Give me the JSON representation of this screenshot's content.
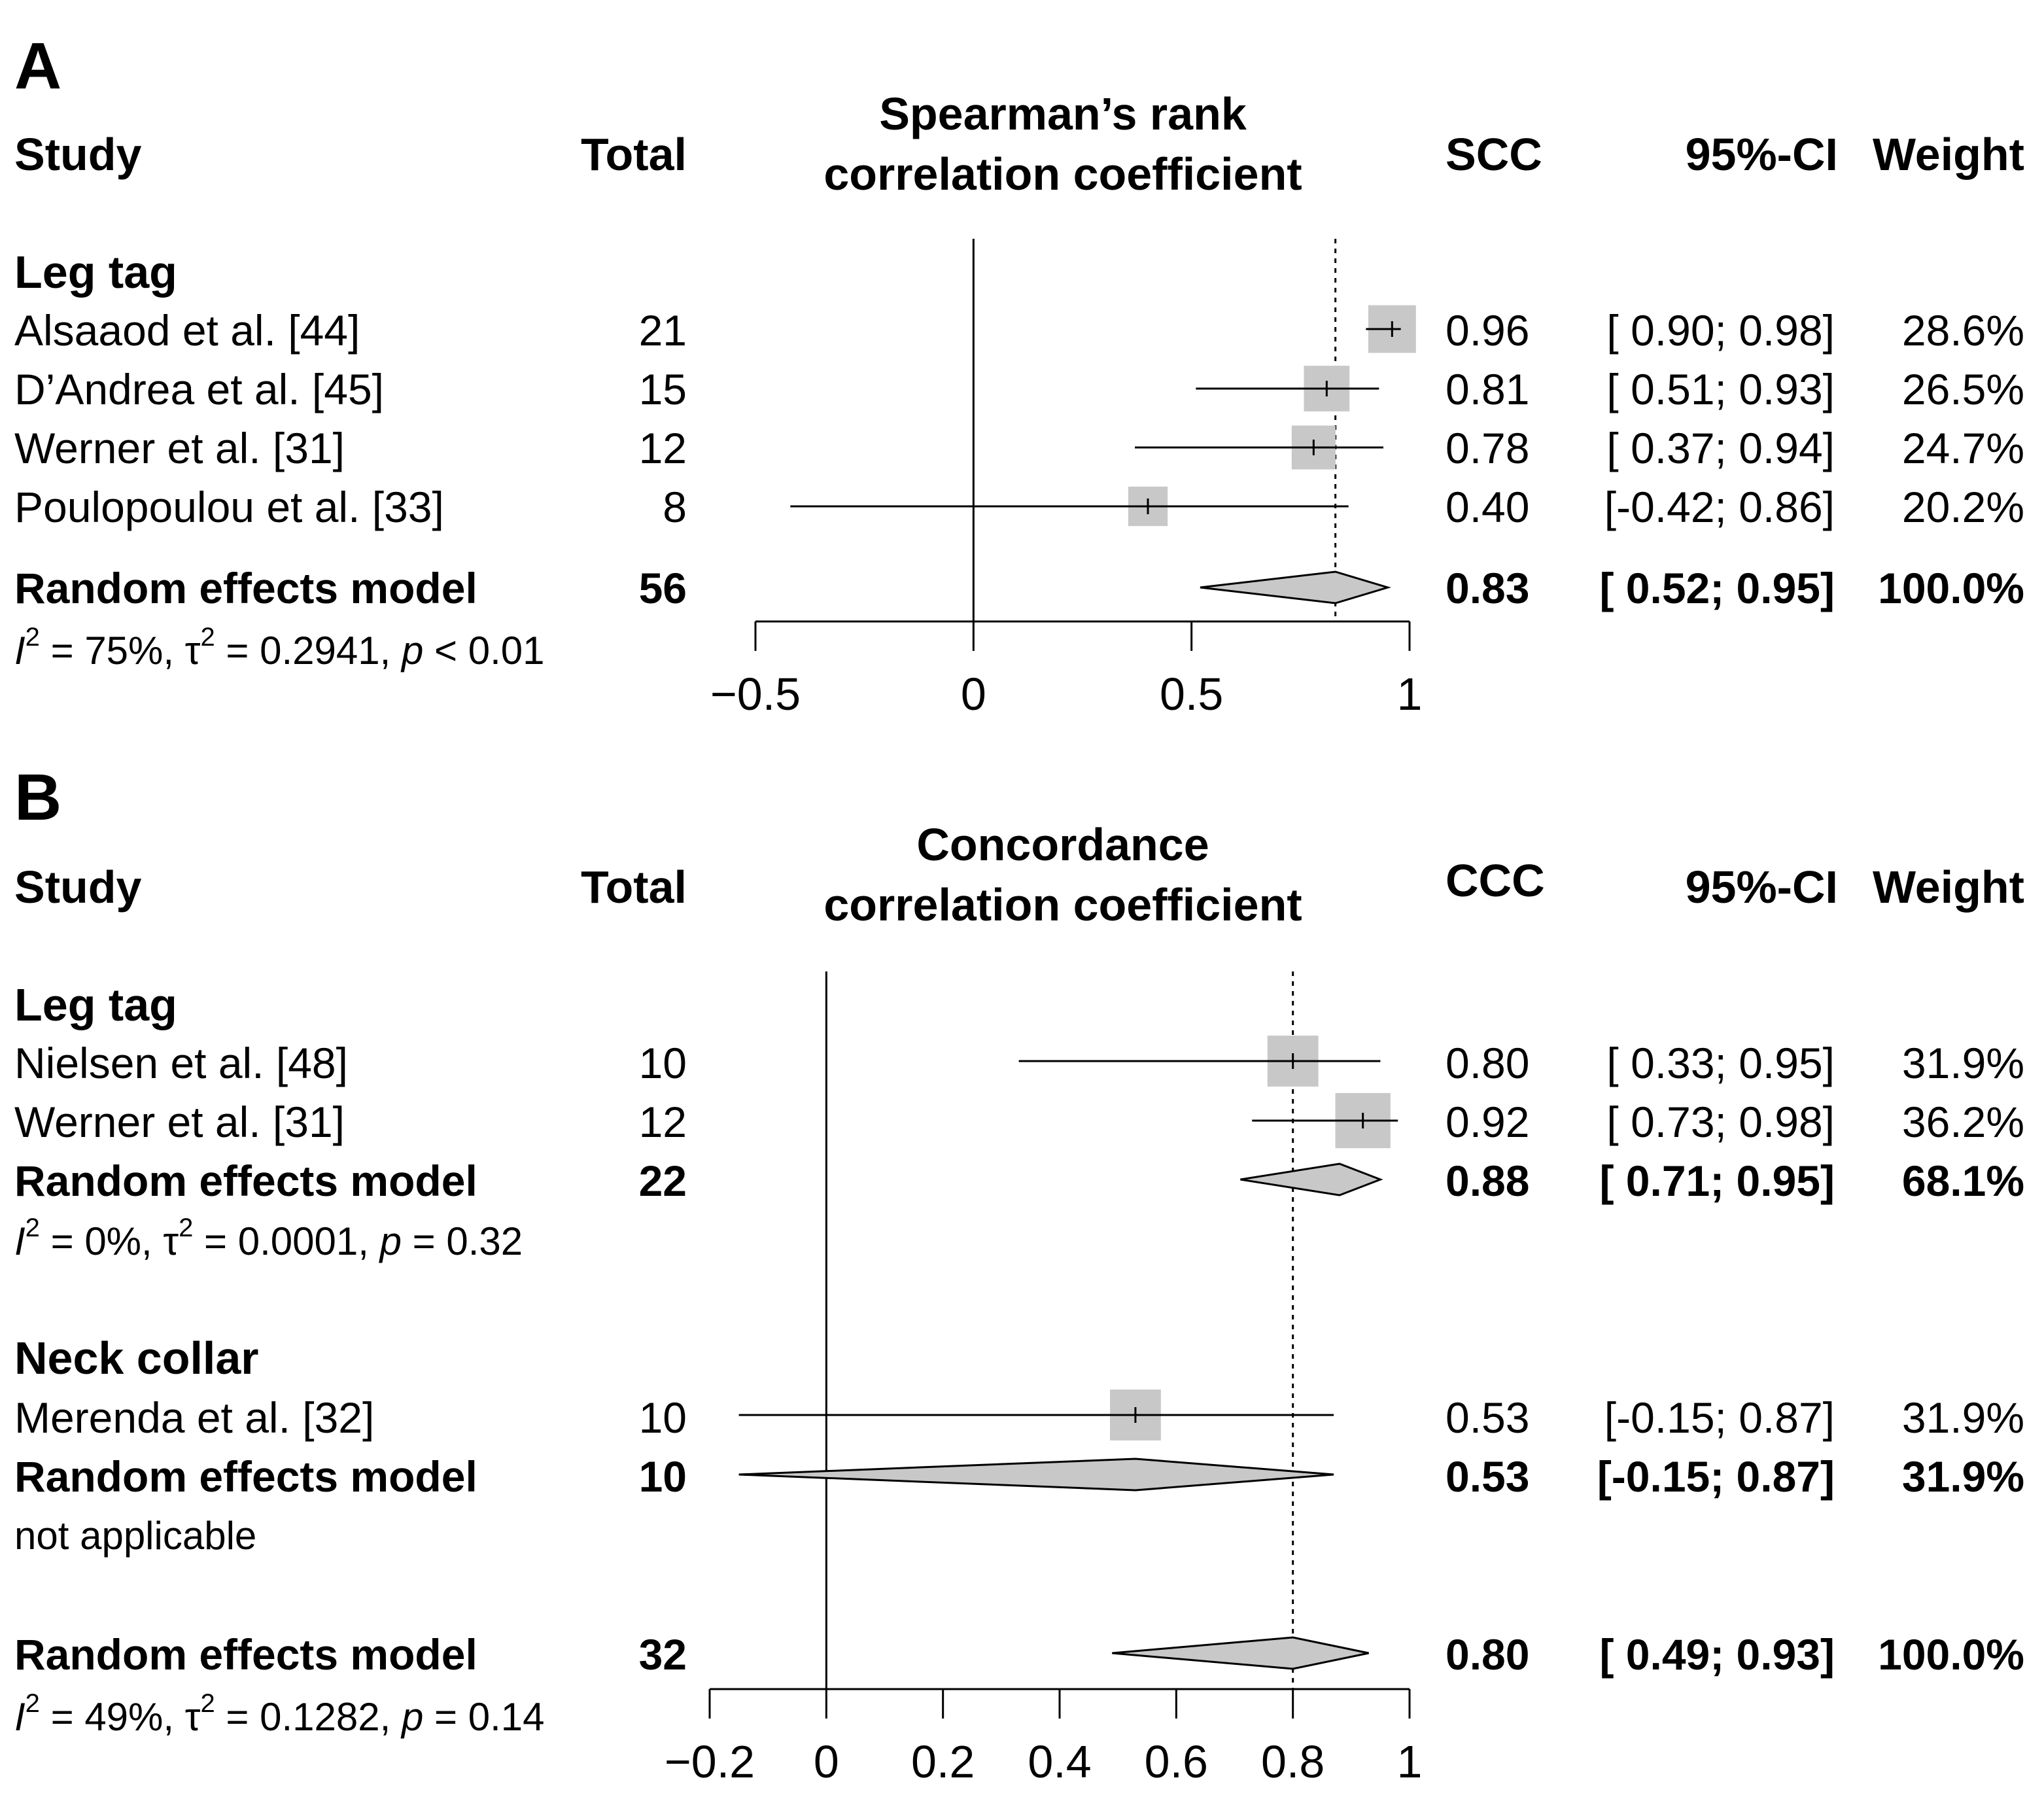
{
  "chart_data": [
    {
      "type": "forest",
      "panel_label": "A",
      "headers": {
        "study": "Study",
        "total": "Total",
        "plot_title_line1": "Spearman’s rank",
        "plot_title_line2": "correlation coefficient",
        "effect": "SCC",
        "ci": "95%-CI",
        "weight": "Weight"
      },
      "xlim": [
        -0.5,
        1
      ],
      "ticks": [
        "−0.5",
        "0",
        "0.5",
        "1"
      ],
      "tick_values": [
        -0.5,
        0,
        0.5,
        1
      ],
      "pooled_reference": 0.83,
      "groups": [
        {
          "name": "Leg tag",
          "studies": [
            {
              "study": "Alsaaod et al. [44]",
              "total": "21",
              "est": 0.96,
              "lo": 0.9,
              "hi": 0.98,
              "est_text": "0.96",
              "ci_text": "[ 0.90; 0.98]",
              "weight": "28.6%"
            },
            {
              "study": "D’Andrea et al. [45]",
              "total": "15",
              "est": 0.81,
              "lo": 0.51,
              "hi": 0.93,
              "est_text": "0.81",
              "ci_text": "[ 0.51; 0.93]",
              "weight": "26.5%"
            },
            {
              "study": "Werner et al. [31]",
              "total": "12",
              "est": 0.78,
              "lo": 0.37,
              "hi": 0.94,
              "est_text": "0.78",
              "ci_text": "[ 0.37; 0.94]",
              "weight": "24.7%"
            },
            {
              "study": "Poulopoulou et al. [33]",
              "total": "8",
              "est": 0.4,
              "lo": -0.42,
              "hi": 0.86,
              "est_text": "0.40",
              "ci_text": "[-0.42; 0.86]",
              "weight": "20.2%"
            }
          ],
          "summary": {
            "label": "Random effects model",
            "total": "56",
            "est": 0.83,
            "lo": 0.52,
            "hi": 0.95,
            "est_text": "0.83",
            "ci_text": "[ 0.52; 0.95]",
            "weight": "100.0%"
          },
          "heterogeneity": {
            "i2": "75%",
            "tau2": "0.2941",
            "p_sign": "<",
            "p": "0.01"
          }
        }
      ]
    },
    {
      "type": "forest",
      "panel_label": "B",
      "headers": {
        "study": "Study",
        "total": "Total",
        "plot_title_line1": "Concordance",
        "plot_title_line2": "correlation coefficient",
        "effect": "CCC",
        "ci": "95%-CI",
        "weight": "Weight"
      },
      "xlim": [
        -0.2,
        1
      ],
      "ticks": [
        "−0.2",
        "0",
        "0.2",
        "0.4",
        "0.6",
        "0.8",
        "1"
      ],
      "tick_values": [
        -0.2,
        0,
        0.2,
        0.4,
        0.6,
        0.8,
        1
      ],
      "pooled_reference": 0.8,
      "groups": [
        {
          "name": "Leg tag",
          "studies": [
            {
              "study": "Nielsen et al. [48]",
              "total": "10",
              "est": 0.8,
              "lo": 0.33,
              "hi": 0.95,
              "est_text": "0.80",
              "ci_text": "[ 0.33; 0.95]",
              "weight": "31.9%"
            },
            {
              "study": "Werner et al. [31]",
              "total": "12",
              "est": 0.92,
              "lo": 0.73,
              "hi": 0.98,
              "est_text": "0.92",
              "ci_text": "[ 0.73; 0.98]",
              "weight": "36.2%"
            }
          ],
          "summary": {
            "label": "Random effects model",
            "total": "22",
            "est": 0.88,
            "lo": 0.71,
            "hi": 0.95,
            "est_text": "0.88",
            "ci_text": "[ 0.71; 0.95]",
            "weight": "68.1%"
          },
          "heterogeneity": {
            "i2": "0%",
            "tau2": "0.0001",
            "p_sign": "=",
            "p": "0.32"
          }
        },
        {
          "name": "Neck collar",
          "studies": [
            {
              "study": "Merenda et al. [32]",
              "total": "10",
              "est": 0.53,
              "lo": -0.15,
              "hi": 0.87,
              "est_text": "0.53",
              "ci_text": "[-0.15; 0.87]",
              "weight": "31.9%"
            }
          ],
          "summary": {
            "label": "Random effects model",
            "total": "10",
            "est": 0.53,
            "lo": -0.15,
            "hi": 0.87,
            "est_text": "0.53",
            "ci_text": "[-0.15; 0.87]",
            "weight": "31.9%"
          },
          "heterogeneity_text": "not applicable"
        }
      ],
      "overall": {
        "summary": {
          "label": "Random effects model",
          "total": "32",
          "est": 0.8,
          "lo": 0.49,
          "hi": 0.93,
          "est_text": "0.80",
          "ci_text": "[ 0.49; 0.93]",
          "weight": "100.0%"
        },
        "heterogeneity": {
          "i2": "49%",
          "tau2": "0.1282",
          "p_sign": "=",
          "p": "0.14"
        }
      }
    }
  ]
}
